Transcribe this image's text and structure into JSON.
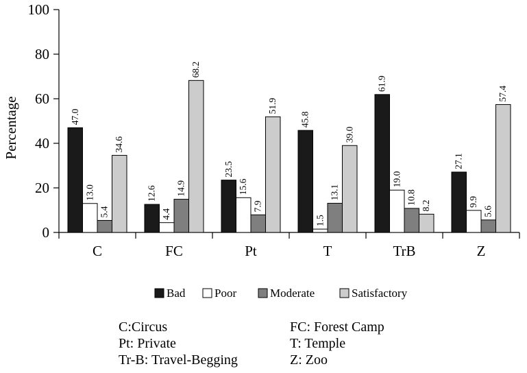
{
  "chart_data": {
    "type": "bar",
    "ylabel": "Percentage",
    "ylim": [
      0,
      100
    ],
    "yticks": [
      0,
      20,
      40,
      60,
      80,
      100
    ],
    "categories": [
      "C",
      "FC",
      "Pt",
      "T",
      "TrB",
      "Z"
    ],
    "series": [
      {
        "name": "Bad",
        "color": "#1a1a1a",
        "values": [
          47.0,
          12.6,
          23.5,
          45.8,
          61.9,
          27.1
        ],
        "labels": [
          "47.0",
          "12.6",
          "23.5",
          "45.8",
          "61.9",
          "27.1"
        ]
      },
      {
        "name": "Poor",
        "color": "#ffffff",
        "values": [
          13.0,
          4.4,
          15.6,
          1.5,
          19.0,
          9.9
        ],
        "labels": [
          "13.0",
          "4.4",
          "15.6",
          "1.5",
          "19.0",
          "9.9"
        ]
      },
      {
        "name": "Moderate",
        "color": "#7f7f7f",
        "values": [
          5.4,
          14.9,
          7.9,
          13.1,
          10.8,
          5.6
        ],
        "labels": [
          "5.4",
          "14.9",
          "7.9",
          "13.1",
          "10.8",
          "5.6"
        ]
      },
      {
        "name": "Satisfactory",
        "color": "#cccccc",
        "values": [
          34.6,
          68.2,
          51.9,
          39.0,
          8.2,
          57.4
        ],
        "labels": [
          "34.6",
          "68.2",
          "51.9",
          "39.0",
          "8.2",
          "57.4"
        ]
      }
    ],
    "legend_position": "bottom",
    "grid": false
  },
  "abbreviations": [
    {
      "left": "C:Circus",
      "right": "FC: Forest Camp"
    },
    {
      "left": "Pt: Private",
      "right": "T: Temple"
    },
    {
      "left": "Tr-B: Travel-Begging",
      "right": "Z: Zoo"
    }
  ]
}
